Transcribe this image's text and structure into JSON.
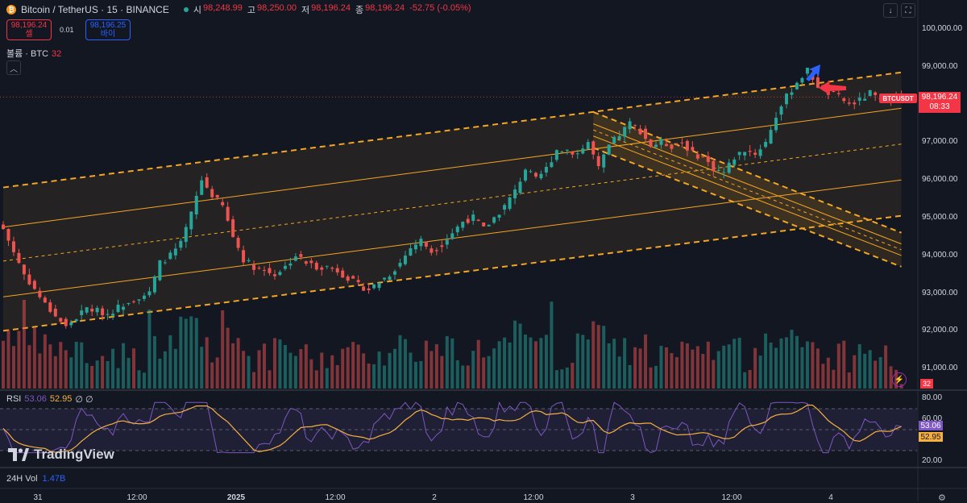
{
  "header": {
    "symbol_title": "Bitcoin / TetherUS · 15 · BINANCE",
    "symbol_icon": "bitcoin-icon",
    "ohlc": [
      {
        "label": "시",
        "value": "98,248.99"
      },
      {
        "label": "고",
        "value": "98,250.00"
      },
      {
        "label": "저",
        "value": "98,196.24"
      },
      {
        "label": "종",
        "value": "98,196.24"
      },
      {
        "label": "",
        "value": "-52.75 (-0.05%)"
      }
    ],
    "toolbar_icons": [
      "arrow-down-icon",
      "fullscreen-icon"
    ]
  },
  "trade": {
    "sell_price": "98,196.24",
    "sell_label": "셀",
    "spread": "0.01",
    "buy_price": "98,196.25",
    "buy_label": "바이"
  },
  "volume_legend": {
    "label": "볼륨 · BTC",
    "value": "32",
    "last_value": "32"
  },
  "price_axis": {
    "labels": [
      "100,000.00",
      "99,000.00",
      "98,000.00",
      "97,000.00",
      "96,000.00",
      "95,000.00",
      "94,000.00",
      "93,000.00",
      "92,000.00",
      "91,000.00"
    ],
    "last_price": "98,196.24",
    "countdown": "08:33",
    "symbol_tag": "BTCUSDT"
  },
  "rsi": {
    "label": "RSI",
    "value": "53.06",
    "ma_value": "52.95",
    "extra": "∅ ∅",
    "axis_labels": [
      "80.00",
      "60.00",
      "20.00"
    ]
  },
  "branding": {
    "logo_text": "TradingView"
  },
  "vol24": {
    "label": "24H Vol",
    "value": "1.47B"
  },
  "time_axis": [
    "31",
    "12:00",
    "2025",
    "12:00",
    "2",
    "12:00",
    "3",
    "12:00",
    "4"
  ],
  "colors": {
    "background": "#131722",
    "up": "#26a69a",
    "down": "#ef5350",
    "channel": "#f5a623",
    "rsi_line": "#7e57c2",
    "rsi_ma": "#f5b041",
    "marker_blue": "#2962ff",
    "marker_red": "#f23645"
  },
  "chart_data": {
    "type": "candlestick",
    "price_range": [
      91000,
      100000
    ],
    "last_price": 98196.24,
    "price_path": [
      [
        0,
        94700
      ],
      [
        4,
        93500
      ],
      [
        8,
        92700
      ],
      [
        12,
        92100
      ],
      [
        16,
        92600
      ],
      [
        20,
        92450
      ],
      [
        24,
        92800
      ],
      [
        28,
        93000
      ],
      [
        30,
        93800
      ],
      [
        32,
        94000
      ],
      [
        34,
        94300
      ],
      [
        36,
        95100
      ],
      [
        38,
        96000
      ],
      [
        40,
        95600
      ],
      [
        42,
        95300
      ],
      [
        44,
        94500
      ],
      [
        46,
        93900
      ],
      [
        48,
        93700
      ],
      [
        50,
        93600
      ],
      [
        52,
        93500
      ],
      [
        54,
        93700
      ],
      [
        56,
        94000
      ],
      [
        58,
        93800
      ],
      [
        60,
        93700
      ],
      [
        62,
        93700
      ],
      [
        64,
        93600
      ],
      [
        66,
        93400
      ],
      [
        68,
        93200
      ],
      [
        70,
        93100
      ],
      [
        72,
        93300
      ],
      [
        74,
        93500
      ],
      [
        76,
        93800
      ],
      [
        78,
        94200
      ],
      [
        80,
        94400
      ],
      [
        82,
        94100
      ],
      [
        84,
        94300
      ],
      [
        86,
        94600
      ],
      [
        88,
        94900
      ],
      [
        90,
        95000
      ],
      [
        92,
        94700
      ],
      [
        94,
        95000
      ],
      [
        96,
        95300
      ],
      [
        98,
        95700
      ],
      [
        100,
        96300
      ],
      [
        102,
        96000
      ],
      [
        104,
        96300
      ],
      [
        106,
        96800
      ],
      [
        108,
        96800
      ],
      [
        110,
        96700
      ],
      [
        112,
        97000
      ],
      [
        114,
        96300
      ],
      [
        116,
        96900
      ],
      [
        118,
        97200
      ],
      [
        120,
        97500
      ],
      [
        122,
        97300
      ],
      [
        124,
        96900
      ],
      [
        126,
        97000
      ],
      [
        128,
        96900
      ],
      [
        130,
        97000
      ],
      [
        132,
        96700
      ],
      [
        134,
        96600
      ],
      [
        136,
        96300
      ],
      [
        138,
        96200
      ],
      [
        140,
        96600
      ],
      [
        142,
        96800
      ],
      [
        144,
        96700
      ],
      [
        146,
        97000
      ],
      [
        148,
        97700
      ],
      [
        150,
        98200
      ],
      [
        152,
        98600
      ],
      [
        154,
        98900
      ],
      [
        156,
        98500
      ],
      [
        158,
        98300
      ],
      [
        160,
        98200
      ],
      [
        162,
        98000
      ],
      [
        164,
        98100
      ],
      [
        166,
        98300
      ],
      [
        168,
        98100
      ],
      [
        170,
        98200
      ],
      [
        172,
        98196
      ]
    ],
    "channel_up": {
      "upper": [
        [
          0,
          95800
        ],
        [
          172,
          98850
        ]
      ],
      "lower": [
        [
          0,
          92000
        ],
        [
          172,
          95050
        ]
      ],
      "mid_lines": [
        [
          [
            0,
            94750
          ],
          [
            172,
            97900
          ]
        ],
        [
          [
            0,
            92900
          ],
          [
            172,
            96000
          ]
        ]
      ],
      "median": [
        [
          0,
          93850
        ],
        [
          172,
          96950
        ]
      ]
    },
    "channel_down": {
      "upper": [
        [
          113,
          97800
        ],
        [
          172,
          94600
        ]
      ],
      "lower": [
        [
          113,
          96850
        ],
        [
          172,
          93700
        ]
      ]
    },
    "rsi_levels": [
      70,
      50,
      30
    ],
    "rsi_range": [
      20,
      80
    ],
    "volume": {
      "max": 32,
      "last": 32
    }
  }
}
